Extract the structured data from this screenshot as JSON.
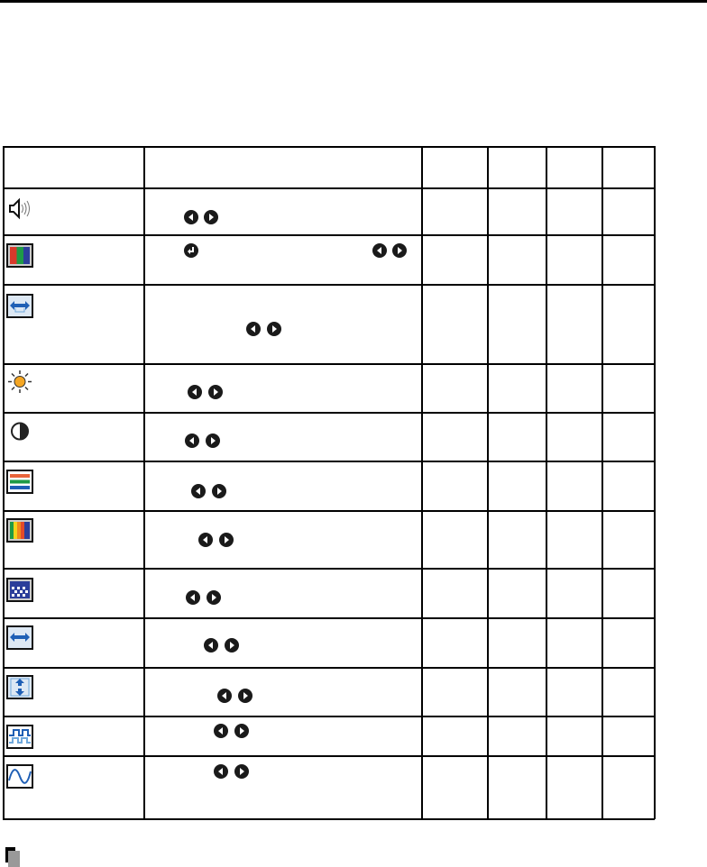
{
  "table": {
    "rows": [
      {
        "icon": "volume-icon",
        "buttons": [
          "left-arrow",
          "right-arrow"
        ]
      },
      {
        "icon": "color-bars-icon",
        "buttons": [
          "enter",
          "left-arrow",
          "right-arrow"
        ]
      },
      {
        "icon": "horizontal-size-icon",
        "buttons": [
          "left-arrow",
          "right-arrow"
        ]
      },
      {
        "icon": "brightness-icon",
        "buttons": [
          "left-arrow",
          "right-arrow"
        ]
      },
      {
        "icon": "contrast-icon",
        "buttons": [
          "left-arrow",
          "right-arrow"
        ]
      },
      {
        "icon": "rgb-levels-icon",
        "buttons": [
          "left-arrow",
          "right-arrow"
        ]
      },
      {
        "icon": "color-spectrum-icon",
        "buttons": [
          "left-arrow",
          "right-arrow"
        ]
      },
      {
        "icon": "sharpness-icon",
        "buttons": [
          "left-arrow",
          "right-arrow"
        ]
      },
      {
        "icon": "horizontal-position-icon",
        "buttons": [
          "left-arrow",
          "right-arrow"
        ]
      },
      {
        "icon": "vertical-position-icon",
        "buttons": [
          "left-arrow",
          "right-arrow"
        ]
      },
      {
        "icon": "phase-icon",
        "buttons": [
          "left-arrow",
          "right-arrow"
        ]
      },
      {
        "icon": "clock-icon",
        "buttons": [
          "left-arrow",
          "right-arrow"
        ]
      }
    ]
  },
  "colors": {
    "icon_blue": "#1f5fb5",
    "icon_light_blue": "#6fa8dc",
    "red": "#d9392b",
    "green": "#1e9a46",
    "blue": "#2c3e9a",
    "orange": "#f5a623"
  }
}
